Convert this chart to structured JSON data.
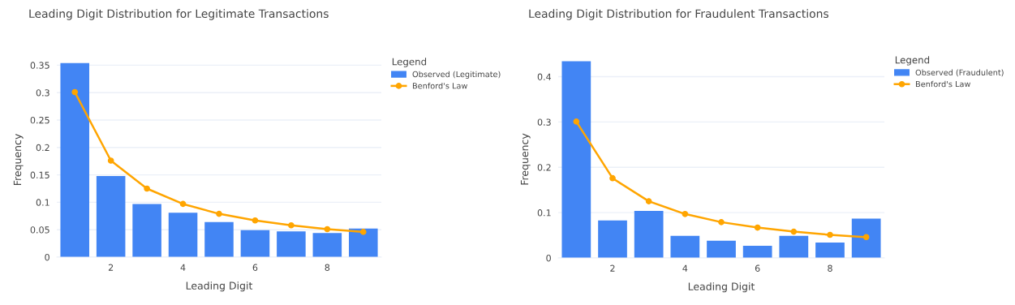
{
  "chart_data": [
    {
      "type": "bar",
      "title": "Leading Digit Distribution for Legitimate Transactions",
      "xlabel": "Leading Digit",
      "ylabel": "Frequency",
      "legend_title": "Legend",
      "legend": "top right",
      "x": [
        1,
        2,
        3,
        4,
        5,
        6,
        7,
        8,
        9
      ],
      "xlim": [
        0.5,
        9.5
      ],
      "xticks": [
        2,
        4,
        6,
        8
      ],
      "ylim": [
        0,
        0.355
      ],
      "yticks": [
        0,
        0.05,
        0.1,
        0.15,
        0.2,
        0.25,
        0.3,
        0.35
      ],
      "grid": "y",
      "series": [
        {
          "name": "Observed (Legitimate)",
          "color": "#4285f4",
          "values": [
            0.354,
            0.148,
            0.097,
            0.081,
            0.064,
            0.049,
            0.047,
            0.044,
            0.052
          ]
        },
        {
          "name": "Benford's Law",
          "type": "line",
          "color": "#ffa500",
          "marker": "circle",
          "line_style": "solid",
          "values": [
            0.301,
            0.176,
            0.125,
            0.097,
            0.079,
            0.067,
            0.058,
            0.051,
            0.046
          ]
        }
      ]
    },
    {
      "type": "bar",
      "title": "Leading Digit Distribution for Fraudulent Transactions",
      "xlabel": "Leading Digit",
      "ylabel": "Frequency",
      "legend_title": "Legend",
      "legend": "top right",
      "x": [
        1,
        2,
        3,
        4,
        5,
        6,
        7,
        8,
        9
      ],
      "xlim": [
        0.5,
        9.5
      ],
      "xticks": [
        2,
        4,
        6,
        8
      ],
      "ylim": [
        0,
        0.435
      ],
      "yticks": [
        0,
        0.1,
        0.2,
        0.3,
        0.4
      ],
      "grid": "y",
      "series": [
        {
          "name": "Observed (Fraudulent)",
          "color": "#4285f4",
          "values": [
            0.434,
            0.083,
            0.104,
            0.049,
            0.038,
            0.027,
            0.049,
            0.034,
            0.087
          ]
        },
        {
          "name": "Benford's Law",
          "type": "line",
          "color": "#ffa500",
          "marker": "circle",
          "line_style": "solid",
          "values": [
            0.301,
            0.176,
            0.125,
            0.097,
            0.079,
            0.067,
            0.058,
            0.051,
            0.046
          ]
        }
      ]
    }
  ]
}
